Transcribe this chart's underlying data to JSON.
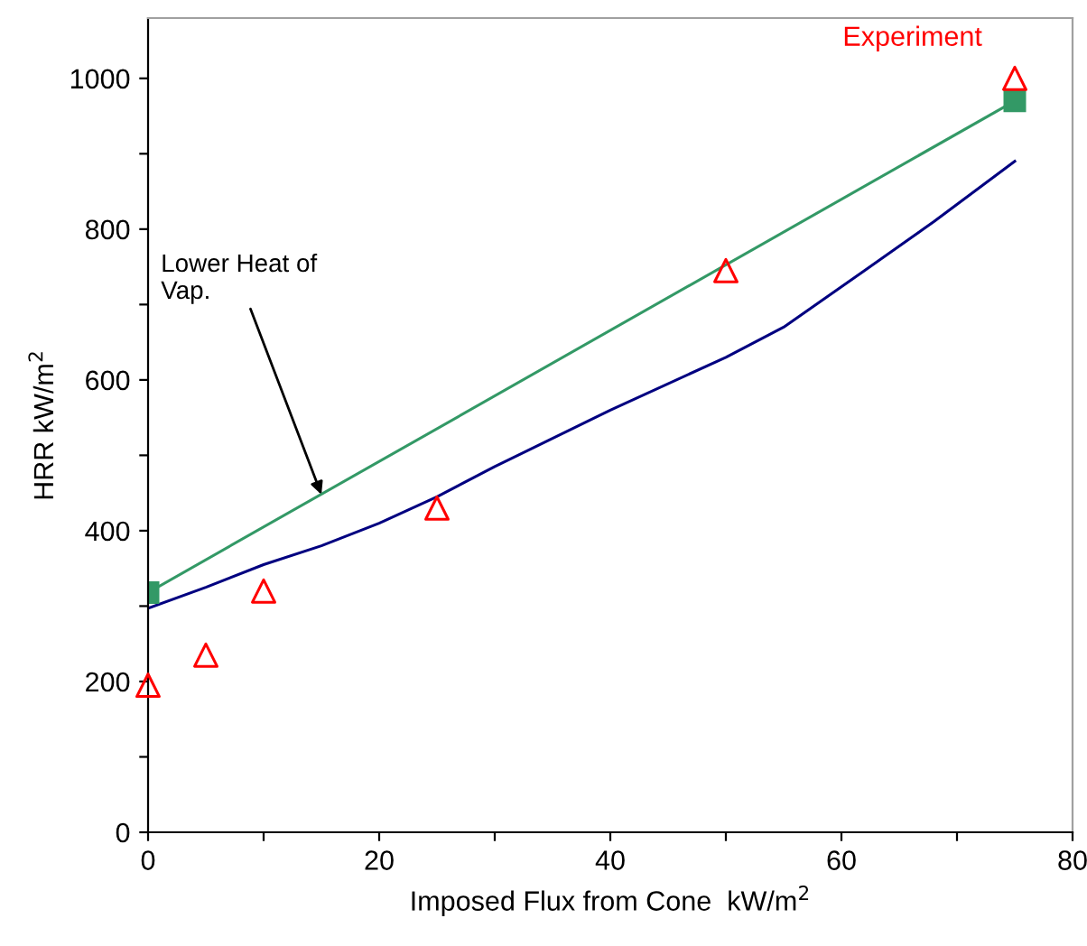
{
  "chart_data": {
    "type": "line",
    "xlabel": "Imposed Flux from Cone  kW/m$^{2}$",
    "ylabel": "HRR kW/m$^{2}$",
    "xlim": [
      0,
      80
    ],
    "ylim": [
      0,
      1080
    ],
    "xticks": [
      0,
      {
        "value": 10,
        "label": null
      },
      20,
      {
        "value": 30,
        "label": null
      },
      40,
      {
        "value": 50,
        "label": null
      },
      60,
      {
        "value": 70,
        "label": null
      },
      80
    ],
    "yticks": [
      0,
      {
        "value": 100,
        "label": null
      },
      200,
      {
        "value": 300,
        "label": null
      },
      400,
      {
        "value": 500,
        "label": null
      },
      600,
      {
        "value": 700,
        "label": null
      },
      800,
      {
        "value": 900,
        "label": null
      },
      1000
    ],
    "grid": false,
    "series": [
      {
        "color": "#000080",
        "marker": "none",
        "x": [
          0,
          5,
          10,
          15,
          20,
          25,
          30,
          40,
          50,
          55,
          62,
          68,
          75
        ],
        "values": [
          297,
          325,
          355,
          380,
          410,
          445,
          485,
          560,
          630,
          670,
          745,
          810,
          890
        ]
      },
      {
        "color": "#339966",
        "marker": "square",
        "x": [
          0,
          75
        ],
        "values": [
          318,
          970
        ]
      },
      {
        "type": "scatter",
        "name": "Experiment",
        "color": "#ff0000",
        "marker": "triangle",
        "x": [
          0,
          5,
          10,
          25,
          50,
          75
        ],
        "values": [
          195,
          235,
          320,
          430,
          745,
          1000
        ]
      }
    ],
    "annotations": [
      {
        "text": "Lower Heat of\nVap.",
        "x": 15,
        "y": 448
      }
    ]
  }
}
